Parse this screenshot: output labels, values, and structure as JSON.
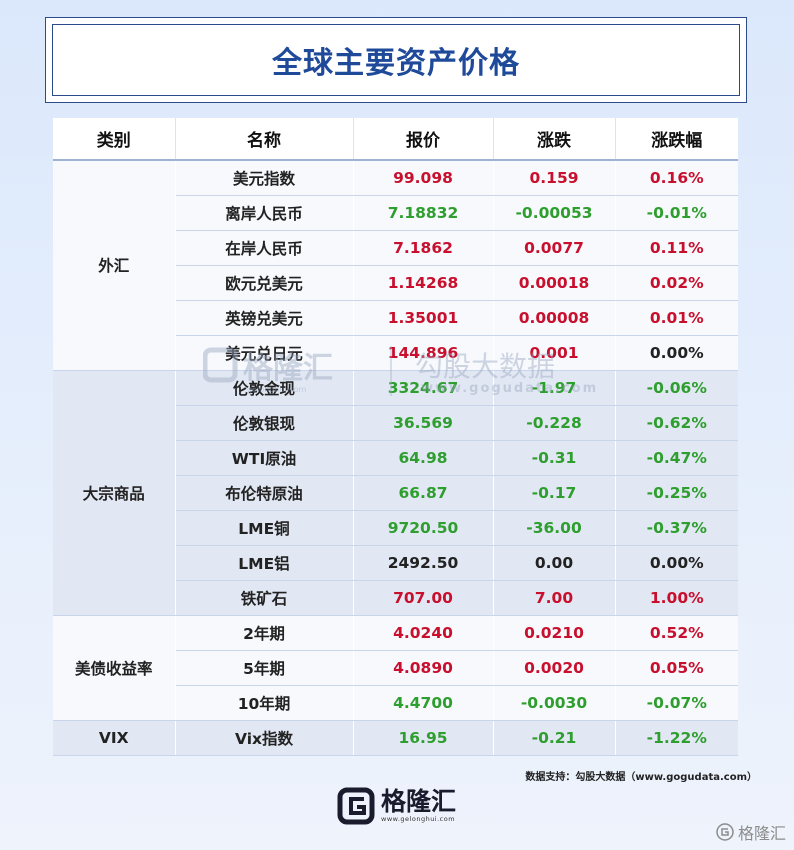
{
  "title": "全球主要资产价格",
  "headers": {
    "category": "类别",
    "name": "名称",
    "price": "报价",
    "change": "涨跌",
    "pct": "涨跌幅"
  },
  "groups": [
    {
      "category": "外汇",
      "rows": [
        {
          "name": "美元指数",
          "price": "99.098",
          "change": "0.159",
          "pct": "0.16%",
          "color": "red"
        },
        {
          "name": "离岸人民币",
          "price": "7.18832",
          "change": "-0.00053",
          "pct": "-0.01%",
          "color": "green"
        },
        {
          "name": "在岸人民币",
          "price": "7.1862",
          "change": "0.0077",
          "pct": "0.11%",
          "color": "red"
        },
        {
          "name": "欧元兑美元",
          "price": "1.14268",
          "change": "0.00018",
          "pct": "0.02%",
          "color": "red"
        },
        {
          "name": "英镑兑美元",
          "price": "1.35001",
          "change": "0.00008",
          "pct": "0.01%",
          "color": "red"
        },
        {
          "name": "美元兑日元",
          "price": "144.896",
          "change": "0.001",
          "pct": "0.00%",
          "color": "red",
          "pct_color": "black"
        }
      ]
    },
    {
      "category": "大宗商品",
      "rows": [
        {
          "name": "伦敦金现",
          "price": "3324.67",
          "change": "-1.97",
          "pct": "-0.06%",
          "color": "green"
        },
        {
          "name": "伦敦银现",
          "price": "36.569",
          "change": "-0.228",
          "pct": "-0.62%",
          "color": "green"
        },
        {
          "name": "WTI原油",
          "price": "64.98",
          "change": "-0.31",
          "pct": "-0.47%",
          "color": "green"
        },
        {
          "name": "布伦特原油",
          "price": "66.87",
          "change": "-0.17",
          "pct": "-0.25%",
          "color": "green"
        },
        {
          "name": "LME铜",
          "price": "9720.50",
          "change": "-36.00",
          "pct": "-0.37%",
          "color": "green"
        },
        {
          "name": "LME铝",
          "price": "2492.50",
          "change": "0.00",
          "pct": "0.00%",
          "color": "black"
        },
        {
          "name": "铁矿石",
          "price": "707.00",
          "change": "7.00",
          "pct": "1.00%",
          "color": "red"
        }
      ]
    },
    {
      "category": "美债收益率",
      "rows": [
        {
          "name": "2年期",
          "price": "4.0240",
          "change": "0.0210",
          "pct": "0.52%",
          "color": "red"
        },
        {
          "name": "5年期",
          "price": "4.0890",
          "change": "0.0020",
          "pct": "0.05%",
          "color": "red"
        },
        {
          "name": "10年期",
          "price": "4.4700",
          "change": "-0.0030",
          "pct": "-0.07%",
          "color": "green"
        }
      ]
    },
    {
      "category": "VIX",
      "rows": [
        {
          "name": "Vix指数",
          "price": "16.95",
          "change": "-0.21",
          "pct": "-1.22%",
          "color": "green"
        }
      ]
    }
  ],
  "footer": {
    "source": "数据支持：勾股大数据（www.gogudata.com）"
  },
  "logo": {
    "name": "格隆汇",
    "url": "www.gelonghui.com"
  },
  "watermark": {
    "brand1": "格隆汇",
    "brand1_url": "gelonghui.com",
    "brand2": "勾股大数据",
    "brand2_url": "www.gogudata.com"
  },
  "corner_mark": "格隆汇",
  "colors": {
    "up": "#c8102e",
    "down": "#2e9e2e",
    "flat": "#222222",
    "title": "#1f4a9a"
  }
}
